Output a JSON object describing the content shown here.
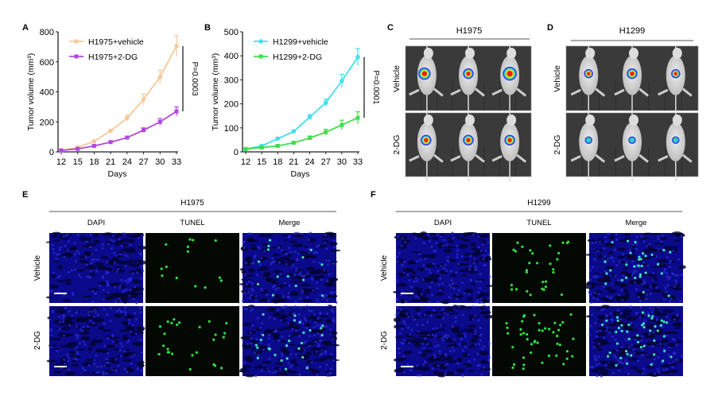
{
  "panels": {
    "A": {
      "letter": "A"
    },
    "B": {
      "letter": "B"
    },
    "C": {
      "letter": "C",
      "title": "H1975",
      "rows": [
        "Vehicle",
        "2-DG"
      ]
    },
    "D": {
      "letter": "D",
      "title": "H1299",
      "rows": [
        "Vehicle",
        "2-DG"
      ]
    },
    "E": {
      "letter": "E",
      "title": "H1975",
      "columns": [
        "DAPI",
        "TUNEL",
        "Merge"
      ],
      "rows": [
        "Vehicle",
        "2-DG"
      ]
    },
    "F": {
      "letter": "F",
      "title": "H1299",
      "columns": [
        "DAPI",
        "TUNEL",
        "Merge"
      ],
      "rows": [
        "Vehicle",
        "2-DG"
      ]
    }
  },
  "chart_data": [
    {
      "panel": "A",
      "type": "line",
      "xlabel": "Days",
      "ylabel": "Tumor volume (mm³)",
      "x": [
        12,
        15,
        18,
        21,
        24,
        27,
        30,
        33
      ],
      "xticks": [
        "12",
        "15",
        "18",
        "21",
        "24",
        "27",
        "30",
        "33"
      ],
      "yticks": [
        "0",
        "200",
        "400",
        "600",
        "800"
      ],
      "ylim": [
        0,
        800
      ],
      "legend": "top-left",
      "annotation": "P=0.0003",
      "series": [
        {
          "name": "H1975+vehicle",
          "color": "#f5c99a",
          "marker": "circle",
          "values": [
            10,
            30,
            70,
            140,
            225,
            350,
            500,
            705
          ],
          "error": [
            3,
            5,
            8,
            10,
            20,
            35,
            45,
            70
          ]
        },
        {
          "name": "H1975+2-DG",
          "color": "#b347e0",
          "marker": "square",
          "values": [
            10,
            20,
            40,
            65,
            95,
            145,
            200,
            270
          ],
          "error": [
            3,
            4,
            6,
            8,
            10,
            15,
            22,
            30
          ]
        }
      ]
    },
    {
      "panel": "B",
      "type": "line",
      "xlabel": "Days",
      "ylabel": "Tumor volume (mm³)",
      "x": [
        12,
        15,
        18,
        21,
        24,
        27,
        30,
        33
      ],
      "xticks": [
        "12",
        "15",
        "18",
        "21",
        "24",
        "27",
        "30",
        "33"
      ],
      "yticks": [
        "0",
        "100",
        "200",
        "300",
        "400",
        "500"
      ],
      "ylim": [
        0,
        500
      ],
      "legend": "top-left",
      "annotation": "P=0.0001",
      "series": [
        {
          "name": "H1299+vehicle",
          "color": "#45e0ec",
          "marker": "circle",
          "values": [
            12,
            25,
            55,
            85,
            145,
            205,
            295,
            395
          ],
          "error": [
            2,
            4,
            5,
            6,
            10,
            15,
            28,
            35
          ]
        },
        {
          "name": "H1299+2-DG",
          "color": "#3ee04c",
          "marker": "square",
          "values": [
            12,
            18,
            25,
            38,
            58,
            82,
            112,
            142
          ],
          "error": [
            2,
            3,
            4,
            5,
            8,
            12,
            20,
            25
          ]
        }
      ]
    }
  ]
}
